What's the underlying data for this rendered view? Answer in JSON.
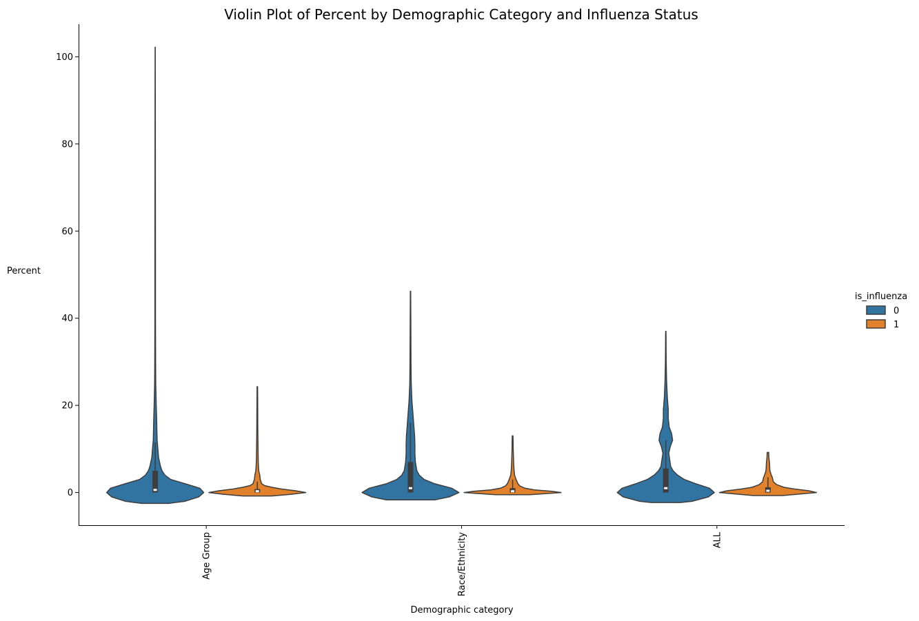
{
  "chart_data": {
    "type": "violin",
    "title": "Violin Plot of Percent by Demographic Category and Influenza Status",
    "xlabel": "Demographic category",
    "ylabel": "Percent",
    "categories": [
      "Age Group",
      "Race/Ethnicity",
      "ALL"
    ],
    "yticks": [
      0,
      20,
      40,
      60,
      80,
      100
    ],
    "ylim": [
      -7.5,
      107.5
    ],
    "grid": false,
    "legend": {
      "title": "is_influenza",
      "placement": "center-right",
      "entries": [
        {
          "label": "0",
          "color": "#3274a1"
        },
        {
          "label": "1",
          "color": "#e1812c"
        }
      ]
    },
    "series": [
      {
        "hue": "0",
        "color": "#3274a1",
        "violins": [
          {
            "category": "Age Group",
            "q1": 0.0,
            "median": 0.6,
            "q3": 5.0,
            "whisker_low": 0.0,
            "whisker_high": 11.5,
            "density": [
              [
                -2.5,
                0.28
              ],
              [
                -2.0,
                0.62
              ],
              [
                -1.0,
                0.9
              ],
              [
                0.0,
                1.0
              ],
              [
                1.0,
                0.92
              ],
              [
                2.0,
                0.62
              ],
              [
                3.0,
                0.32
              ],
              [
                4.0,
                0.2
              ],
              [
                5.0,
                0.14
              ],
              [
                6.0,
                0.11
              ],
              [
                8.0,
                0.07
              ],
              [
                10.0,
                0.055
              ],
              [
                12.0,
                0.04
              ],
              [
                14.0,
                0.035
              ],
              [
                17.0,
                0.03
              ],
              [
                20.0,
                0.022
              ],
              [
                25.0,
                0.012
              ],
              [
                30.0,
                0.008
              ],
              [
                40.0,
                0.006
              ],
              [
                50.0,
                0.005
              ],
              [
                70.0,
                0.004
              ],
              [
                90.0,
                0.003
              ],
              [
                102.2,
                0.002
              ]
            ]
          },
          {
            "category": "Race/Ethnicity",
            "q1": 0.0,
            "median": 1.0,
            "q3": 7.0,
            "whisker_low": 0.0,
            "whisker_high": 16.0,
            "density": [
              [
                -1.7,
                0.5
              ],
              [
                -1.0,
                0.8
              ],
              [
                0.0,
                1.0
              ],
              [
                1.0,
                0.85
              ],
              [
                2.0,
                0.5
              ],
              [
                3.0,
                0.28
              ],
              [
                4.0,
                0.18
              ],
              [
                5.0,
                0.13
              ],
              [
                7.0,
                0.1
              ],
              [
                9.0,
                0.09
              ],
              [
                11.0,
                0.09
              ],
              [
                13.0,
                0.085
              ],
              [
                15.0,
                0.07
              ],
              [
                18.0,
                0.05
              ],
              [
                21.0,
                0.03
              ],
              [
                25.0,
                0.015
              ],
              [
                30.0,
                0.01
              ],
              [
                40.0,
                0.006
              ],
              [
                46.2,
                0.004
              ]
            ]
          },
          {
            "category": "ALL",
            "q1": 0.0,
            "median": 1.0,
            "q3": 5.5,
            "whisker_low": 0.0,
            "whisker_high": 12.0,
            "density": [
              [
                -2.3,
                0.3
              ],
              [
                -2.0,
                0.55
              ],
              [
                -1.0,
                0.88
              ],
              [
                0.0,
                1.0
              ],
              [
                1.0,
                0.9
              ],
              [
                2.0,
                0.62
              ],
              [
                3.0,
                0.38
              ],
              [
                4.0,
                0.24
              ],
              [
                5.0,
                0.15
              ],
              [
                6.0,
                0.1
              ],
              [
                7.5,
                0.08
              ],
              [
                9.0,
                0.06
              ],
              [
                10.5,
                0.09
              ],
              [
                12.0,
                0.14
              ],
              [
                13.5,
                0.12
              ],
              [
                15.0,
                0.07
              ],
              [
                17.0,
                0.05
              ],
              [
                19.0,
                0.05
              ],
              [
                22.0,
                0.03
              ],
              [
                26.0,
                0.015
              ],
              [
                30.0,
                0.008
              ],
              [
                37.0,
                0.004
              ]
            ]
          }
        ]
      },
      {
        "hue": "1",
        "color": "#e1812c",
        "violins": [
          {
            "category": "Age Group",
            "q1": 0.0,
            "median": 0.3,
            "q3": 0.8,
            "whisker_low": 0.0,
            "whisker_high": 2.5,
            "density": [
              [
                -0.8,
                0.3
              ],
              [
                -0.4,
                0.7
              ],
              [
                0.0,
                1.0
              ],
              [
                0.4,
                0.8
              ],
              [
                0.8,
                0.5
              ],
              [
                1.2,
                0.3
              ],
              [
                1.6,
                0.15
              ],
              [
                2.0,
                0.09
              ],
              [
                3.0,
                0.06
              ],
              [
                4.0,
                0.05
              ],
              [
                5.0,
                0.03
              ],
              [
                7.0,
                0.02
              ],
              [
                10.0,
                0.015
              ],
              [
                15.0,
                0.01
              ],
              [
                20.0,
                0.008
              ],
              [
                24.3,
                0.005
              ]
            ]
          },
          {
            "category": "Race/Ethnicity",
            "q1": 0.0,
            "median": 0.3,
            "q3": 1.0,
            "whisker_low": 0.0,
            "whisker_high": 3.0,
            "density": [
              [
                -0.5,
                0.35
              ],
              [
                -0.2,
                0.75
              ],
              [
                0.0,
                1.0
              ],
              [
                0.3,
                0.8
              ],
              [
                0.6,
                0.45
              ],
              [
                1.0,
                0.25
              ],
              [
                1.5,
                0.15
              ],
              [
                2.0,
                0.11
              ],
              [
                2.5,
                0.09
              ],
              [
                3.0,
                0.07
              ],
              [
                4.0,
                0.04
              ],
              [
                5.0,
                0.03
              ],
              [
                7.0,
                0.02
              ],
              [
                10.0,
                0.012
              ],
              [
                13.0,
                0.008
              ]
            ]
          },
          {
            "category": "ALL",
            "q1": 0.0,
            "median": 0.4,
            "q3": 1.2,
            "whisker_low": 0.0,
            "whisker_high": 3.5,
            "density": [
              [
                -0.7,
                0.3
              ],
              [
                -0.3,
                0.7
              ],
              [
                0.0,
                1.0
              ],
              [
                0.4,
                0.85
              ],
              [
                0.8,
                0.55
              ],
              [
                1.2,
                0.33
              ],
              [
                1.8,
                0.18
              ],
              [
                2.5,
                0.11
              ],
              [
                3.0,
                0.1
              ],
              [
                3.5,
                0.09
              ],
              [
                4.0,
                0.07
              ],
              [
                5.0,
                0.04
              ],
              [
                6.0,
                0.035
              ],
              [
                7.0,
                0.03
              ],
              [
                8.0,
                0.02
              ],
              [
                9.2,
                0.015
              ]
            ]
          }
        ]
      }
    ]
  }
}
